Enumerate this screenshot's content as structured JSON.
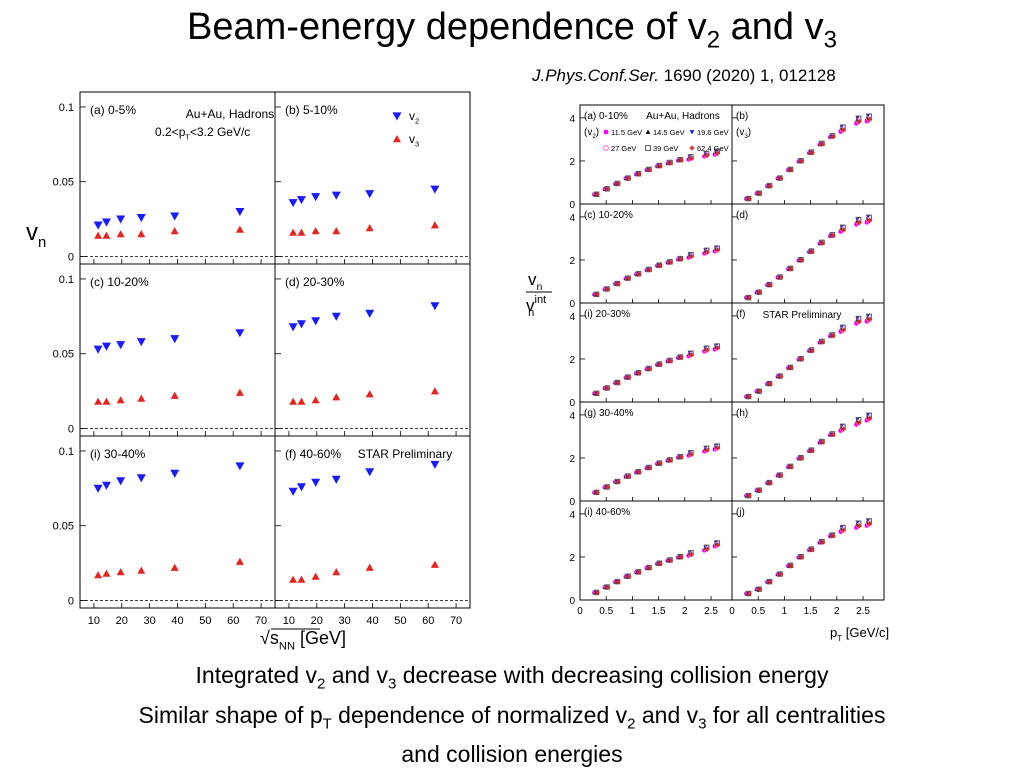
{
  "slide": {
    "title_pre": "Beam-energy dependence of v",
    "title_sub1": "2",
    "title_mid": " and v",
    "title_sub2": "3",
    "reference_journal": "J.Phys.Conf.Ser.",
    "reference_rest": " 1690 (2020) 1, 012128",
    "caption_line1_a": "Integrated v",
    "caption_line1_s1": "2",
    "caption_line1_b": " and v",
    "caption_line1_s2": "3",
    "caption_line1_c": " decrease with decreasing collision energy",
    "caption_line2_a": "Similar shape of p",
    "caption_line2_s1": "T",
    "caption_line2_b": " dependence of normalized v",
    "caption_line2_s2": "2",
    "caption_line2_c": " and v",
    "caption_line2_s3": "3",
    "caption_line2_d": " for all centralities",
    "caption_line3": "and collision energies"
  },
  "colors": {
    "v2": "#1a1aff",
    "v3": "#e8231f",
    "e11": "#ff00ff",
    "e14": "#000000",
    "e19": "#1a1aff",
    "e27": "#ff66cc",
    "e39": "#555555",
    "e62": "#e8231f"
  },
  "chart_data": [
    {
      "type": "scatter",
      "title": "vn vs sqrt(sNN)",
      "ylabel": "v",
      "ylabel_sub": "n",
      "xlabel": "√s",
      "xlabel_sub": "NN",
      "xlabel_unit": " [GeV]",
      "xlim": [
        5,
        75
      ],
      "ylim": [
        -0.005,
        0.11
      ],
      "xticks": [
        "10",
        "20",
        "30",
        "40",
        "50",
        "60",
        "70"
      ],
      "yticks": [
        "0",
        "0.05",
        "0.1"
      ],
      "system_label": "Au+Au, Hadrons",
      "cut_label": "0.2<p",
      "cut_label_sub": "T",
      "cut_label_rest": "<3.2 GeV/c",
      "legend": [
        {
          "name": "v",
          "sub": "2",
          "marker": "tri-down"
        },
        {
          "name": "v",
          "sub": "3",
          "marker": "tri-up"
        }
      ],
      "preliminary": "STAR Preliminary",
      "x": [
        11.5,
        14.5,
        19.6,
        27,
        39,
        62.4
      ],
      "panels": [
        {
          "label": "(a) 0-5%",
          "v2": [
            0.021,
            0.023,
            0.025,
            0.026,
            0.027,
            0.03
          ],
          "v3": [
            0.014,
            0.014,
            0.015,
            0.015,
            0.017,
            0.018
          ]
        },
        {
          "label": "(b) 5-10%",
          "v2": [
            0.036,
            0.038,
            0.04,
            0.041,
            0.042,
            0.045
          ],
          "v3": [
            0.016,
            0.016,
            0.017,
            0.017,
            0.019,
            0.021
          ]
        },
        {
          "label": "(c) 10-20%",
          "v2": [
            0.053,
            0.055,
            0.056,
            0.058,
            0.06,
            0.064
          ],
          "v3": [
            0.018,
            0.018,
            0.019,
            0.02,
            0.022,
            0.024
          ]
        },
        {
          "label": "(d) 20-30%",
          "v2": [
            0.068,
            0.07,
            0.072,
            0.075,
            0.077,
            0.082
          ],
          "v3": [
            0.018,
            0.018,
            0.019,
            0.021,
            0.023,
            0.025
          ]
        },
        {
          "label": "(i) 30-40%",
          "v2": [
            0.075,
            0.077,
            0.08,
            0.082,
            0.085,
            0.09
          ],
          "v3": [
            0.017,
            0.018,
            0.019,
            0.02,
            0.022,
            0.026
          ]
        },
        {
          "label": "(f) 40-60%",
          "v2": [
            0.073,
            0.076,
            0.079,
            0.081,
            0.086,
            0.091
          ],
          "v3": [
            0.014,
            0.014,
            0.016,
            0.019,
            0.022,
            0.024
          ]
        }
      ]
    },
    {
      "type": "scatter",
      "title": "vn/vn_int vs pT",
      "ylabel_num": "v",
      "ylabel_num_sub": "n",
      "ylabel_den": "v",
      "ylabel_den_sub": "n",
      "ylabel_den_sup": "int",
      "xlabel": "p",
      "xlabel_sub": "T",
      "xlabel_unit": " [GeV/c]",
      "xlim": [
        0,
        2.9
      ],
      "ylim": [
        0,
        4.6
      ],
      "xticks": [
        "0",
        "0.5",
        "1",
        "1.5",
        "2",
        "2.5"
      ],
      "yticks": [
        "0",
        "2",
        "4"
      ],
      "system_label": "Au+Au, Hadrons",
      "preliminary": "STAR Preliminary",
      "energies": [
        "11.5 GeV",
        "14.5 GeV",
        "19.6 GeV",
        "27 GeV",
        "39 GeV",
        "62.4 GeV"
      ],
      "v2_tag": "(v",
      "v2_tag_sub": "2",
      "v2_tag_end": ")",
      "v3_tag": "(v",
      "v3_tag_sub": "3",
      "v3_tag_end": ")",
      "pt": [
        0.3,
        0.5,
        0.7,
        0.9,
        1.1,
        1.3,
        1.5,
        1.7,
        1.9,
        2.1,
        2.4,
        2.6
      ],
      "left_panels": [
        {
          "label": "(a)  0-10%",
          "values": [
            0.45,
            0.7,
            0.95,
            1.2,
            1.4,
            1.6,
            1.78,
            1.92,
            2.05,
            2.15,
            2.3,
            2.4
          ]
        },
        {
          "label": "(c)  10-20%",
          "values": [
            0.4,
            0.65,
            0.9,
            1.15,
            1.35,
            1.55,
            1.75,
            1.9,
            2.05,
            2.2,
            2.4,
            2.5
          ]
        },
        {
          "label": "(i)  20-30%",
          "values": [
            0.4,
            0.65,
            0.9,
            1.15,
            1.35,
            1.55,
            1.75,
            1.92,
            2.08,
            2.22,
            2.45,
            2.55
          ]
        },
        {
          "label": "(g)  30-40%",
          "values": [
            0.4,
            0.65,
            0.9,
            1.15,
            1.35,
            1.55,
            1.75,
            1.9,
            2.05,
            2.2,
            2.4,
            2.5
          ]
        },
        {
          "label": "(i)  40-60%",
          "values": [
            0.35,
            0.6,
            0.85,
            1.1,
            1.3,
            1.5,
            1.7,
            1.85,
            2.0,
            2.15,
            2.4,
            2.6
          ]
        }
      ],
      "right_panels": [
        {
          "label": "(b)",
          "values": [
            0.25,
            0.5,
            0.85,
            1.2,
            1.6,
            2.0,
            2.4,
            2.8,
            3.15,
            3.5,
            3.9,
            4.0
          ]
        },
        {
          "label": "(d)",
          "values": [
            0.25,
            0.5,
            0.85,
            1.2,
            1.6,
            2.0,
            2.4,
            2.8,
            3.15,
            3.45,
            3.8,
            3.9
          ]
        },
        {
          "label": "(f)",
          "values": [
            0.25,
            0.5,
            0.85,
            1.2,
            1.6,
            2.0,
            2.4,
            2.8,
            3.1,
            3.4,
            3.8,
            3.9
          ]
        },
        {
          "label": "(h)",
          "values": [
            0.25,
            0.5,
            0.85,
            1.2,
            1.6,
            2.0,
            2.35,
            2.75,
            3.1,
            3.4,
            3.7,
            3.9
          ]
        },
        {
          "label": "(j)",
          "values": [
            0.3,
            0.5,
            0.85,
            1.2,
            1.6,
            2.0,
            2.35,
            2.7,
            3.0,
            3.3,
            3.5,
            3.6
          ]
        }
      ]
    }
  ]
}
